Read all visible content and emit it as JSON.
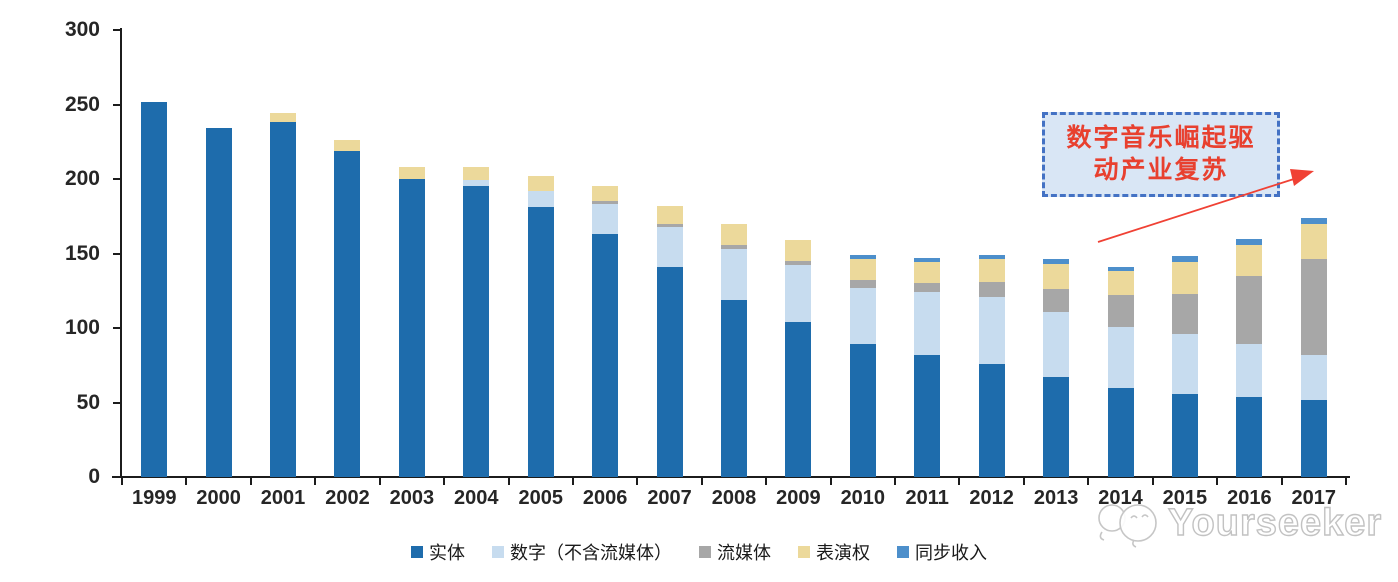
{
  "chart_data": {
    "type": "bar",
    "stacked": true,
    "title": "",
    "xlabel": "",
    "ylabel": "",
    "ylim": [
      0,
      300
    ],
    "y_ticks": [
      0,
      50,
      100,
      150,
      200,
      250,
      300
    ],
    "grid": false,
    "legend_position": "bottom",
    "categories": [
      "1999",
      "2000",
      "2001",
      "2002",
      "2003",
      "2004",
      "2005",
      "2006",
      "2007",
      "2008",
      "2009",
      "2010",
      "2011",
      "2012",
      "2013",
      "2014",
      "2015",
      "2016",
      "2017"
    ],
    "series": [
      {
        "name": "实体",
        "color": "#1E6CAC",
        "values": [
          252,
          234,
          238,
          219,
          200,
          195,
          181,
          163,
          141,
          119,
          104,
          89,
          82,
          76,
          67,
          60,
          56,
          54,
          52
        ]
      },
      {
        "name": "数字（不含流媒体）",
        "color": "#C7DCEF",
        "values": [
          0,
          0,
          0,
          0,
          0,
          4,
          11,
          20,
          27,
          34,
          38,
          38,
          42,
          45,
          44,
          41,
          40,
          35,
          30
        ]
      },
      {
        "name": "流媒体",
        "color": "#A7A7A7",
        "values": [
          0,
          0,
          0,
          0,
          0,
          0,
          0,
          2,
          2,
          3,
          3,
          5,
          6,
          10,
          15,
          21,
          27,
          46,
          64
        ]
      },
      {
        "name": "表演权",
        "color": "#ECD99B",
        "values": [
          0,
          0,
          6,
          7,
          8,
          9,
          10,
          10,
          12,
          14,
          14,
          14,
          14,
          15,
          17,
          16,
          21,
          21,
          24
        ]
      },
      {
        "name": "同步收入",
        "color": "#4D8FCB",
        "values": [
          0,
          0,
          0,
          0,
          0,
          0,
          0,
          0,
          0,
          0,
          0,
          3,
          3,
          3,
          3,
          3,
          4,
          4,
          4
        ]
      }
    ]
  },
  "annotation": {
    "line1": "数字音乐崛起驱",
    "line2": "动产业复苏",
    "box_fill": "#D9E6F5",
    "border_color": "#4472C4",
    "text_color": "#E8402F",
    "arrow_color": "#F04134"
  },
  "watermark": {
    "text": "Yourseeker",
    "logo": "doodle-face-icon",
    "color": "#C2C2C2"
  }
}
